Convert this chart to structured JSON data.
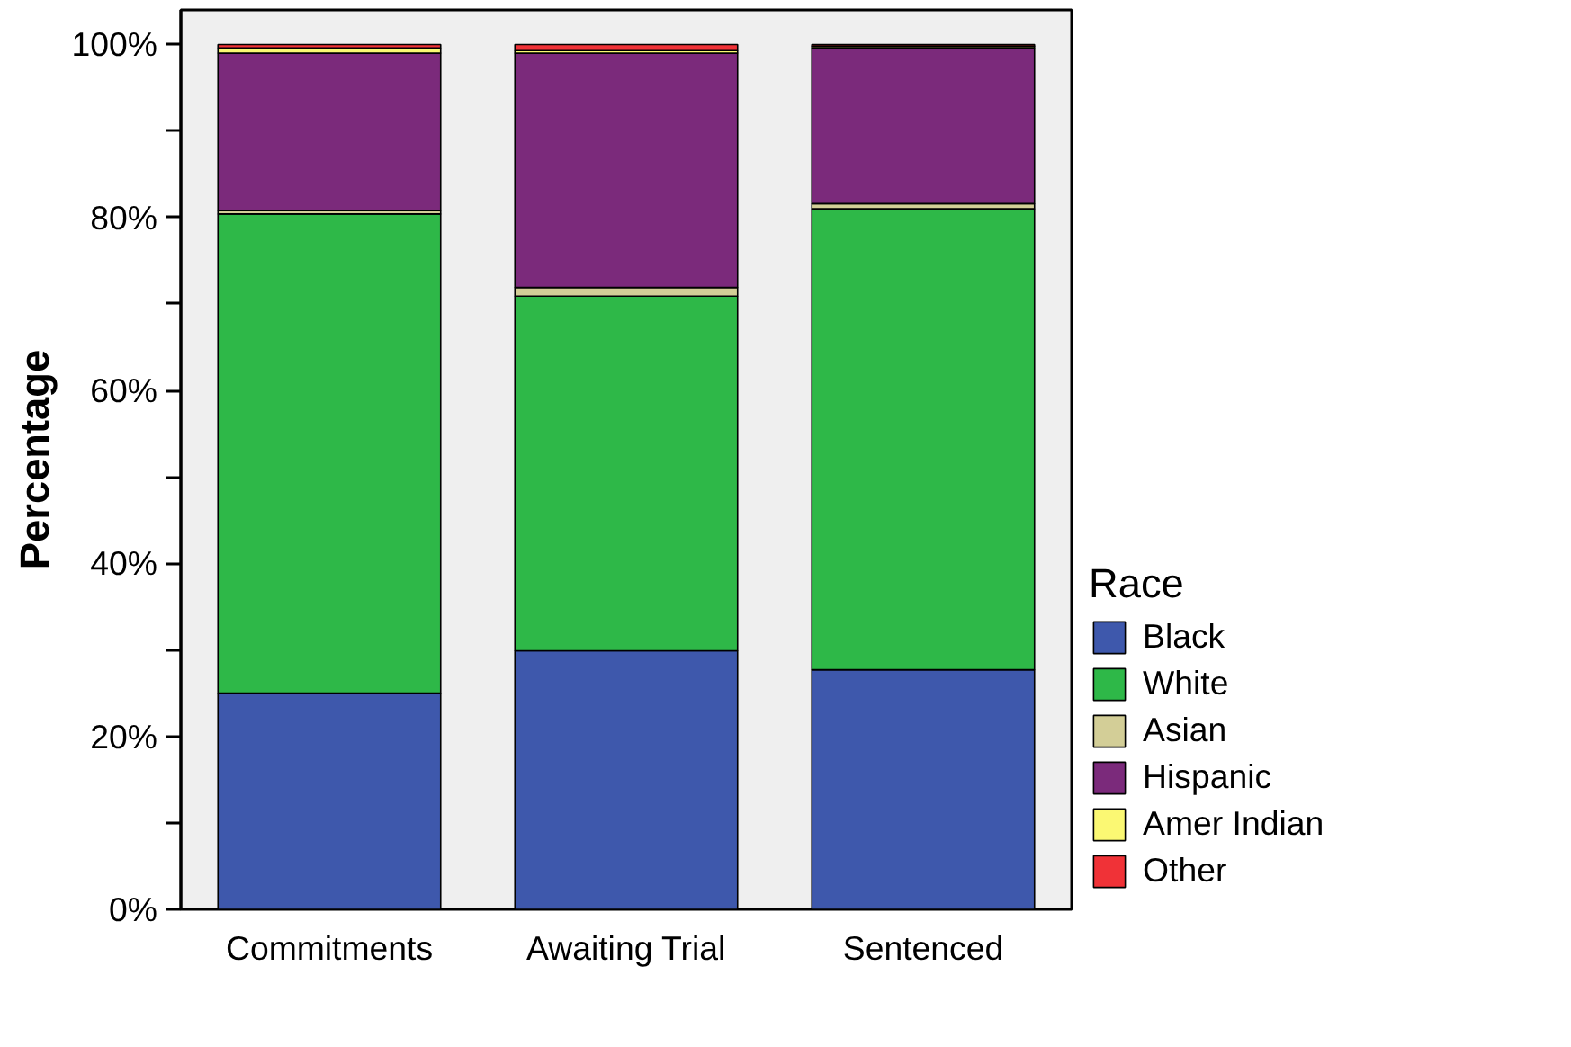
{
  "chart_data": {
    "type": "bar",
    "stacked": true,
    "ylabel": "Percentage",
    "legend_title": "Race",
    "legend": "right",
    "grid": false,
    "categories": [
      "Commitments",
      "Awaiting Trial",
      "Sentenced"
    ],
    "series": [
      {
        "name": "Black",
        "color": "#3e58ac",
        "values": [
          25.0,
          29.9,
          27.7
        ]
      },
      {
        "name": "White",
        "color": "#2eb848",
        "values": [
          55.4,
          41.0,
          53.3
        ]
      },
      {
        "name": "Asian",
        "color": "#d3ce97",
        "values": [
          0.4,
          1.0,
          0.6
        ]
      },
      {
        "name": "Hispanic",
        "color": "#7b2a7b",
        "values": [
          18.2,
          27.1,
          18.0
        ]
      },
      {
        "name": "Amer Indian",
        "color": "#fbf873",
        "values": [
          0.6,
          0.3,
          0.2
        ]
      },
      {
        "name": "Other",
        "color": "#f03237",
        "values": [
          0.4,
          0.7,
          0.2
        ]
      }
    ],
    "ylim": [
      0,
      104
    ],
    "yticks": [
      {
        "value": 0,
        "label": "0%"
      },
      {
        "value": 10,
        "label": null
      },
      {
        "value": 20,
        "label": "20%"
      },
      {
        "value": 30,
        "label": null
      },
      {
        "value": 40,
        "label": "40%"
      },
      {
        "value": 50,
        "label": null
      },
      {
        "value": 60,
        "label": "60%"
      },
      {
        "value": 70,
        "label": null
      },
      {
        "value": 80,
        "label": "80%"
      },
      {
        "value": 90,
        "label": null
      },
      {
        "value": 100,
        "label": "100%"
      }
    ]
  }
}
